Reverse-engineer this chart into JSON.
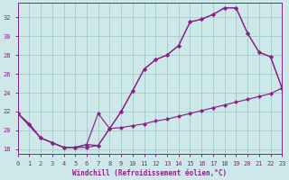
{
  "background_color": "#cce8e8",
  "grid_color": "#aacccc",
  "line_color": "#882288",
  "xlabel": "Windchill (Refroidissement éolien,°C)",
  "xlim": [
    0,
    23
  ],
  "ylim": [
    17.5,
    33.5
  ],
  "yticks": [
    18,
    20,
    22,
    24,
    26,
    28,
    30,
    32
  ],
  "xticks": [
    0,
    1,
    2,
    3,
    4,
    5,
    6,
    7,
    8,
    9,
    10,
    11,
    12,
    13,
    14,
    15,
    16,
    17,
    18,
    19,
    20,
    21,
    22,
    23
  ],
  "curve1_x": [
    0,
    1,
    2,
    3,
    4,
    5,
    6,
    7,
    8,
    9,
    10,
    11,
    12,
    13,
    14,
    15,
    16,
    17,
    18,
    19,
    20,
    21,
    22,
    23
  ],
  "curve1_y": [
    21.8,
    20.7,
    19.2,
    18.7,
    18.2,
    18.2,
    18.5,
    18.4,
    20.2,
    22.0,
    24.2,
    26.5,
    27.5,
    28.0,
    29.0,
    31.5,
    31.8,
    32.3,
    33.0,
    33.0,
    30.3,
    28.3,
    27.8,
    24.5
  ],
  "curve2_x": [
    0,
    1,
    2,
    3,
    4,
    5,
    6,
    7,
    8,
    9,
    10,
    11,
    12,
    13,
    14,
    15,
    16,
    17,
    18,
    19,
    20,
    21,
    22,
    23
  ],
  "curve2_y": [
    21.8,
    20.7,
    19.2,
    18.7,
    18.2,
    18.2,
    18.5,
    21.8,
    20.2,
    20.3,
    20.5,
    20.7,
    21.0,
    21.2,
    21.5,
    21.8,
    22.1,
    22.4,
    22.7,
    23.0,
    23.3,
    23.6,
    23.9,
    24.5
  ],
  "curve3_x": [
    0,
    2,
    3,
    4,
    5,
    6,
    7,
    8,
    9,
    10,
    11,
    12,
    13,
    14,
    15,
    16,
    17,
    18,
    19,
    20,
    21,
    22,
    23
  ],
  "curve3_y": [
    21.8,
    19.2,
    18.7,
    18.2,
    18.2,
    18.2,
    18.4,
    20.2,
    22.0,
    24.2,
    26.5,
    27.5,
    28.0,
    29.0,
    31.5,
    31.8,
    32.3,
    33.0,
    33.0,
    30.3,
    28.3,
    27.8,
    24.5
  ]
}
